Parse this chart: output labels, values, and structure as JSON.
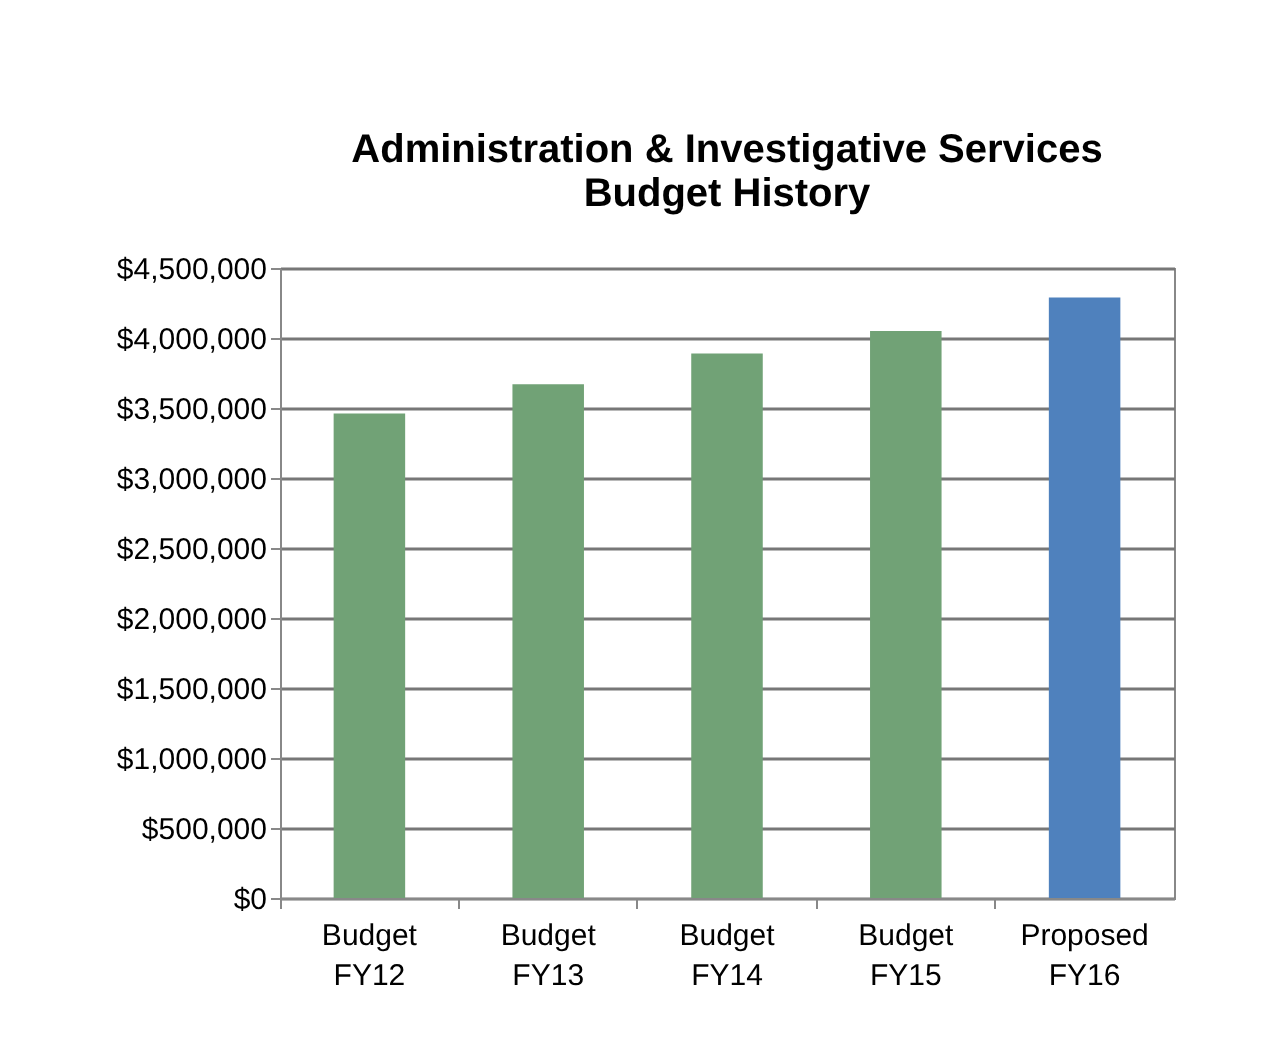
{
  "chart_data": {
    "type": "bar",
    "title": "Administration & Investigative Services\nBudget History",
    "categories": [
      "Budget\nFY12",
      "Budget\nFY13",
      "Budget\nFY14",
      "Budget\nFY15",
      "Proposed\nFY16"
    ],
    "values": [
      3460000,
      3670000,
      3890000,
      4050000,
      4290000
    ],
    "colors": [
      "#71a276",
      "#71a276",
      "#71a276",
      "#71a276",
      "#4f81bd"
    ],
    "ylim": [
      0,
      4500000
    ],
    "yticks": [
      {
        "value": 0,
        "label": "$0"
      },
      {
        "value": 500000,
        "label": "$500,000"
      },
      {
        "value": 1000000,
        "label": "$1,000,000"
      },
      {
        "value": 1500000,
        "label": "$1,500,000"
      },
      {
        "value": 2000000,
        "label": "$2,000,000"
      },
      {
        "value": 2500000,
        "label": "$2,500,000"
      },
      {
        "value": 3000000,
        "label": "$3,000,000"
      },
      {
        "value": 3500000,
        "label": "$3,500,000"
      },
      {
        "value": 4000000,
        "label": "$4,000,000"
      },
      {
        "value": 4500000,
        "label": "$4,500,000"
      }
    ],
    "grid": "y",
    "legend": false
  }
}
